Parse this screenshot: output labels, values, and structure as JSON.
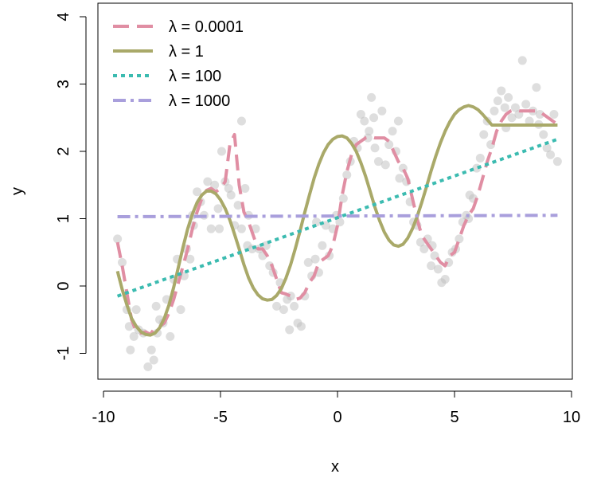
{
  "chart_data": {
    "type": "scatter",
    "title": "",
    "xlabel": "x",
    "ylabel": "y",
    "xlim": [
      -10,
      10
    ],
    "ylim": [
      -1.4,
      4.2
    ],
    "xticks": [
      -10,
      -5,
      0,
      5,
      10
    ],
    "xtick_labels": [
      "-10",
      "-5",
      "0",
      "5",
      "10"
    ],
    "yticks": [
      -1,
      0,
      1,
      2,
      3,
      4
    ],
    "ytick_labels": [
      "-1",
      "0",
      "1",
      "2",
      "3",
      "4"
    ],
    "grid": false,
    "legend_position": "top-left",
    "points": {
      "color": "#bdbdbd",
      "x": [
        -9.4,
        -9.2,
        -9.0,
        -8.85,
        -8.7,
        -8.6,
        -8.5,
        -8.3,
        -8.1,
        -7.95,
        -7.85,
        -7.7,
        -7.6,
        -7.45,
        -7.3,
        -7.15,
        -7.0,
        -6.85,
        -6.7,
        -6.55,
        -6.45,
        -6.3,
        -6.15,
        -6.0,
        -5.85,
        -5.7,
        -5.55,
        -5.4,
        -5.25,
        -5.1,
        -4.95,
        -4.8,
        -4.65,
        -4.55,
        -4.4,
        -4.25,
        -4.1,
        -3.95,
        -3.8,
        -3.65,
        -3.5,
        -3.35,
        -3.2,
        -3.05,
        -2.9,
        -2.75,
        -2.6,
        -2.45,
        -2.3,
        -2.15,
        -2.0,
        -1.85,
        -1.7,
        -1.55,
        -1.4,
        -1.25,
        -1.1,
        -0.95,
        -0.8,
        -0.65,
        -0.5,
        -0.35,
        -0.2,
        -0.05,
        0.1,
        0.25,
        0.4,
        0.55,
        0.7,
        0.85,
        1.0,
        1.15,
        1.3,
        1.45,
        1.6,
        1.75,
        1.9,
        2.05,
        2.2,
        2.35,
        2.5,
        2.65,
        2.8,
        2.95,
        3.1,
        3.25,
        3.4,
        3.55,
        3.7,
        3.85,
        4.0,
        4.15,
        4.3,
        4.45,
        4.6,
        4.75,
        4.9,
        5.05,
        5.2,
        5.35,
        5.5,
        5.65,
        5.8,
        5.95,
        6.1,
        6.25,
        6.4,
        6.55,
        6.7,
        6.85,
        7.0,
        7.15,
        7.3,
        7.45,
        7.6,
        7.75,
        7.9,
        8.05,
        8.2,
        8.35,
        8.5,
        8.65,
        8.8,
        8.95,
        9.1,
        9.25,
        9.4,
        -8.9,
        -7.75,
        -6.2,
        -5.05,
        -3.85,
        -2.05,
        -0.9,
        1.35,
        2.6,
        4.05,
        5.6,
        7.2,
        8.6,
        -4.1,
        1.55
      ],
      "y": [
        0.7,
        0.35,
        -0.35,
        -0.95,
        -0.75,
        -0.35,
        -0.65,
        -0.7,
        -1.2,
        -0.95,
        -1.1,
        -0.7,
        -0.5,
        -0.55,
        -0.2,
        -0.75,
        0.1,
        0.4,
        -0.35,
        0.15,
        0.55,
        0.4,
        0.9,
        1.4,
        1.25,
        1.05,
        1.55,
        0.85,
        1.5,
        1.15,
        2.0,
        1.55,
        1.45,
        1.35,
        0.9,
        1.2,
        0.85,
        1.45,
        1.05,
        0.55,
        0.85,
        0.55,
        0.45,
        0.6,
        0.3,
        0.2,
        -0.3,
        0.05,
        -0.35,
        -0.2,
        -0.15,
        -0.3,
        -0.55,
        -0.6,
        -0.15,
        0.35,
        0.15,
        0.4,
        0.2,
        0.6,
        0.9,
        0.45,
        0.85,
        1.05,
        0.95,
        1.3,
        1.65,
        1.85,
        2.15,
        2.05,
        2.55,
        2.45,
        2.2,
        2.8,
        2.05,
        1.85,
        2.6,
        1.8,
        2.1,
        2.3,
        2.0,
        1.6,
        1.75,
        1.55,
        1.25,
        0.95,
        0.9,
        0.65,
        0.55,
        0.7,
        0.3,
        0.45,
        0.25,
        0.05,
        0.1,
        0.35,
        0.5,
        0.55,
        0.7,
        0.95,
        1.05,
        1.35,
        1.3,
        1.75,
        1.9,
        2.25,
        2.45,
        2.1,
        2.6,
        2.75,
        2.9,
        2.65,
        2.8,
        2.5,
        2.65,
        2.55,
        3.35,
        2.7,
        2.45,
        2.6,
        2.95,
        2.55,
        2.25,
        2.05,
        1.95,
        2.55,
        1.85,
        -0.6,
        -0.3,
        1.05,
        0.85,
        0.6,
        -0.65,
        0.95,
        2.3,
        2.45,
        0.6,
        1.0,
        2.35,
        2.4,
        2.45,
        2.5
      ]
    },
    "series": [
      {
        "name": "λ = 0.0001",
        "color": "#e08ea3",
        "dash": "long",
        "x": [
          -9.4,
          -9.2,
          -9.0,
          -8.8,
          -8.6,
          -8.4,
          -8.2,
          -8.0,
          -7.8,
          -7.6,
          -7.4,
          -7.2,
          -7.0,
          -6.8,
          -6.6,
          -6.4,
          -6.2,
          -6.0,
          -5.8,
          -5.6,
          -5.4,
          -5.2,
          -5.0,
          -4.8,
          -4.6,
          -4.4,
          -4.2,
          -4.0,
          -3.8,
          -3.6,
          -3.4,
          -3.2,
          -3.0,
          -2.8,
          -2.6,
          -2.4,
          -2.2,
          -2.0,
          -1.8,
          -1.6,
          -1.4,
          -1.2,
          -1.0,
          -0.8,
          -0.6,
          -0.4,
          -0.2,
          0.0,
          0.2,
          0.4,
          0.6,
          0.8,
          1.0,
          1.2,
          1.4,
          1.6,
          1.8,
          2.0,
          2.2,
          2.4,
          2.6,
          2.8,
          3.0,
          3.2,
          3.4,
          3.6,
          3.8,
          4.0,
          4.2,
          4.4,
          4.6,
          4.8,
          5.0,
          5.2,
          5.4,
          5.6,
          5.8,
          6.0,
          6.2,
          6.4,
          6.6,
          6.8,
          7.0,
          7.2,
          7.4,
          7.6,
          7.8,
          8.0,
          8.2,
          8.4,
          8.6,
          8.8,
          9.0,
          9.2,
          9.4
        ],
        "y": [
          0.65,
          0.3,
          -0.1,
          -0.5,
          -0.68,
          -0.7,
          -0.68,
          -0.72,
          -0.62,
          -0.6,
          -0.55,
          -0.4,
          -0.2,
          0.05,
          0.3,
          0.55,
          0.85,
          1.1,
          1.3,
          1.42,
          1.45,
          1.4,
          1.45,
          1.55,
          2.1,
          2.25,
          1.5,
          1.1,
          0.95,
          0.75,
          0.55,
          0.55,
          0.45,
          0.3,
          0.1,
          -0.1,
          -0.12,
          -0.15,
          -0.2,
          -0.18,
          -0.1,
          0.05,
          0.15,
          0.35,
          0.4,
          0.45,
          0.6,
          0.9,
          1.35,
          1.7,
          1.95,
          2.1,
          2.15,
          2.2,
          2.22,
          2.2,
          2.2,
          2.2,
          2.15,
          2.0,
          1.85,
          1.75,
          1.6,
          1.3,
          1.0,
          0.75,
          0.65,
          0.55,
          0.45,
          0.35,
          0.3,
          0.45,
          0.5,
          0.7,
          0.9,
          1.05,
          1.15,
          1.35,
          1.6,
          1.85,
          2.05,
          2.3,
          2.45,
          2.55,
          2.6,
          2.62,
          2.6,
          2.6,
          2.6,
          2.6,
          2.6,
          2.55,
          2.5,
          2.45,
          2.4
        ]
      },
      {
        "name": "λ = 1",
        "color": "#a9a969",
        "dash": "solid",
        "x": [
          -9.4,
          -9.2,
          -9.0,
          -8.8,
          -8.6,
          -8.4,
          -8.2,
          -8.0,
          -7.8,
          -7.6,
          -7.4,
          -7.2,
          -7.0,
          -6.8,
          -6.6,
          -6.4,
          -6.2,
          -6.0,
          -5.8,
          -5.6,
          -5.4,
          -5.2,
          -5.0,
          -4.8,
          -4.6,
          -4.4,
          -4.2,
          -4.0,
          -3.8,
          -3.6,
          -3.4,
          -3.2,
          -3.0,
          -2.8,
          -2.6,
          -2.4,
          -2.2,
          -2.0,
          -1.8,
          -1.6,
          -1.4,
          -1.2,
          -1.0,
          -0.8,
          -0.6,
          -0.4,
          -0.2,
          0.0,
          0.2,
          0.4,
          0.6,
          0.8,
          1.0,
          1.2,
          1.4,
          1.6,
          1.8,
          2.0,
          2.2,
          2.4,
          2.6,
          2.8,
          3.0,
          3.2,
          3.4,
          3.6,
          3.8,
          4.0,
          4.2,
          4.4,
          4.6,
          4.8,
          5.0,
          5.2,
          5.4,
          5.6,
          5.8,
          6.0,
          6.2,
          6.4,
          6.6,
          6.8,
          7.0,
          7.2,
          7.4,
          7.6,
          7.8,
          8.0,
          8.2,
          8.4,
          8.6,
          8.8,
          9.0,
          9.2,
          9.4
        ],
        "y": [
          0.22,
          -0.05,
          -0.28,
          -0.48,
          -0.6,
          -0.68,
          -0.72,
          -0.73,
          -0.7,
          -0.62,
          -0.48,
          -0.28,
          -0.02,
          0.28,
          0.58,
          0.85,
          1.07,
          1.24,
          1.35,
          1.41,
          1.41,
          1.37,
          1.28,
          1.15,
          0.98,
          0.77,
          0.55,
          0.32,
          0.12,
          -0.03,
          -0.13,
          -0.19,
          -0.21,
          -0.2,
          -0.14,
          -0.04,
          0.12,
          0.32,
          0.56,
          0.82,
          1.09,
          1.35,
          1.6,
          1.81,
          1.98,
          2.1,
          2.18,
          2.22,
          2.23,
          2.2,
          2.12,
          2.0,
          1.83,
          1.63,
          1.4,
          1.17,
          0.97,
          0.8,
          0.68,
          0.61,
          0.59,
          0.62,
          0.71,
          0.85,
          1.03,
          1.24,
          1.47,
          1.71,
          1.93,
          2.13,
          2.3,
          2.44,
          2.55,
          2.62,
          2.66,
          2.68,
          2.66,
          2.62,
          2.55,
          2.47,
          2.39,
          2.39,
          2.39,
          2.39,
          2.39,
          2.39,
          2.39,
          2.39,
          2.39,
          2.39,
          2.39,
          2.39,
          2.39,
          2.39,
          2.39
        ]
      },
      {
        "name": "λ = 100",
        "color": "#3bbbb0",
        "dash": "dotted",
        "x": [
          -9.4,
          9.4
        ],
        "y": [
          -0.15,
          2.18
        ]
      },
      {
        "name": "λ = 1000",
        "color": "#a99fdc",
        "dash": "dashdot",
        "x": [
          -9.4,
          9.4
        ],
        "y": [
          1.03,
          1.05
        ]
      }
    ]
  }
}
